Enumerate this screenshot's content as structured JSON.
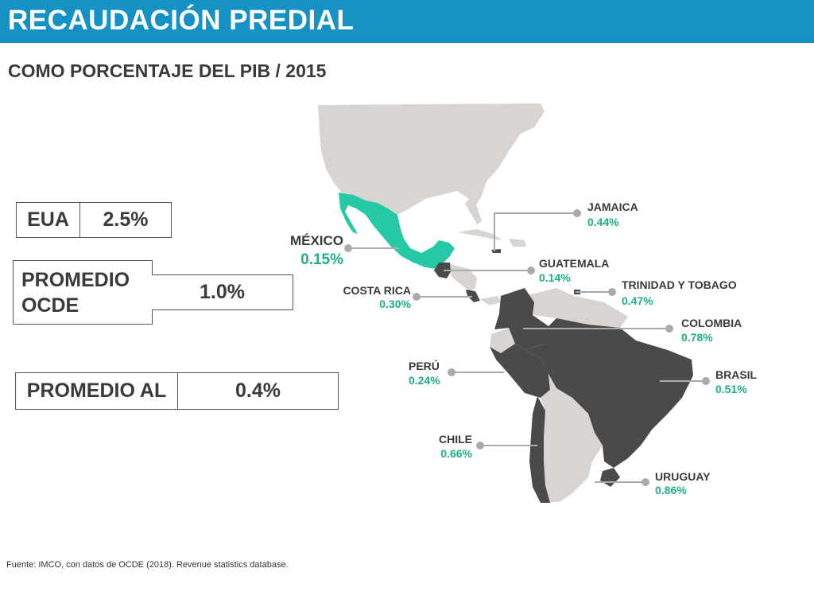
{
  "header": {
    "title": "RECAUDACIÓN PREDIAL"
  },
  "subtitle": "COMO PORCENTAJE DEL PIB / 2015",
  "stats": {
    "eua": {
      "label": "EUA",
      "value": "2.5%"
    },
    "ocde": {
      "label_line1": "PROMEDIO",
      "label_line2": "OCDE",
      "value": "1.0%"
    },
    "al": {
      "label": "PROMEDIO AL",
      "value": "0.4%"
    }
  },
  "countries": {
    "mexico": {
      "name": "MÉXICO",
      "value": "0.15%"
    },
    "jamaica": {
      "name": "JAMAICA",
      "value": "0.44%"
    },
    "guatemala": {
      "name": "GUATEMALA",
      "value": "0.14%"
    },
    "costa_rica": {
      "name": "COSTA RICA",
      "value": "0.30%"
    },
    "trinidad": {
      "name": "TRINIDAD Y TOBAGO",
      "value": "0.47%"
    },
    "colombia": {
      "name": "COLOMBIA",
      "value": "0.78%"
    },
    "peru": {
      "name": "PERÚ",
      "value": "0.24%"
    },
    "brasil": {
      "name": "BRASIL",
      "value": "0.51%"
    },
    "chile": {
      "name": "CHILE",
      "value": "0.66%"
    },
    "uruguay": {
      "name": "URUGUAY",
      "value": "0.86%"
    }
  },
  "colors": {
    "header": "#1591c4",
    "highlight_mexico": "#26c9a6",
    "data_country": "#4a4a4a",
    "other_country": "#d8d4d2",
    "value_text": "#1fae8a"
  },
  "source": "Fuente: IMCO, con datos de OCDE (2018). Revenue statistics database."
}
